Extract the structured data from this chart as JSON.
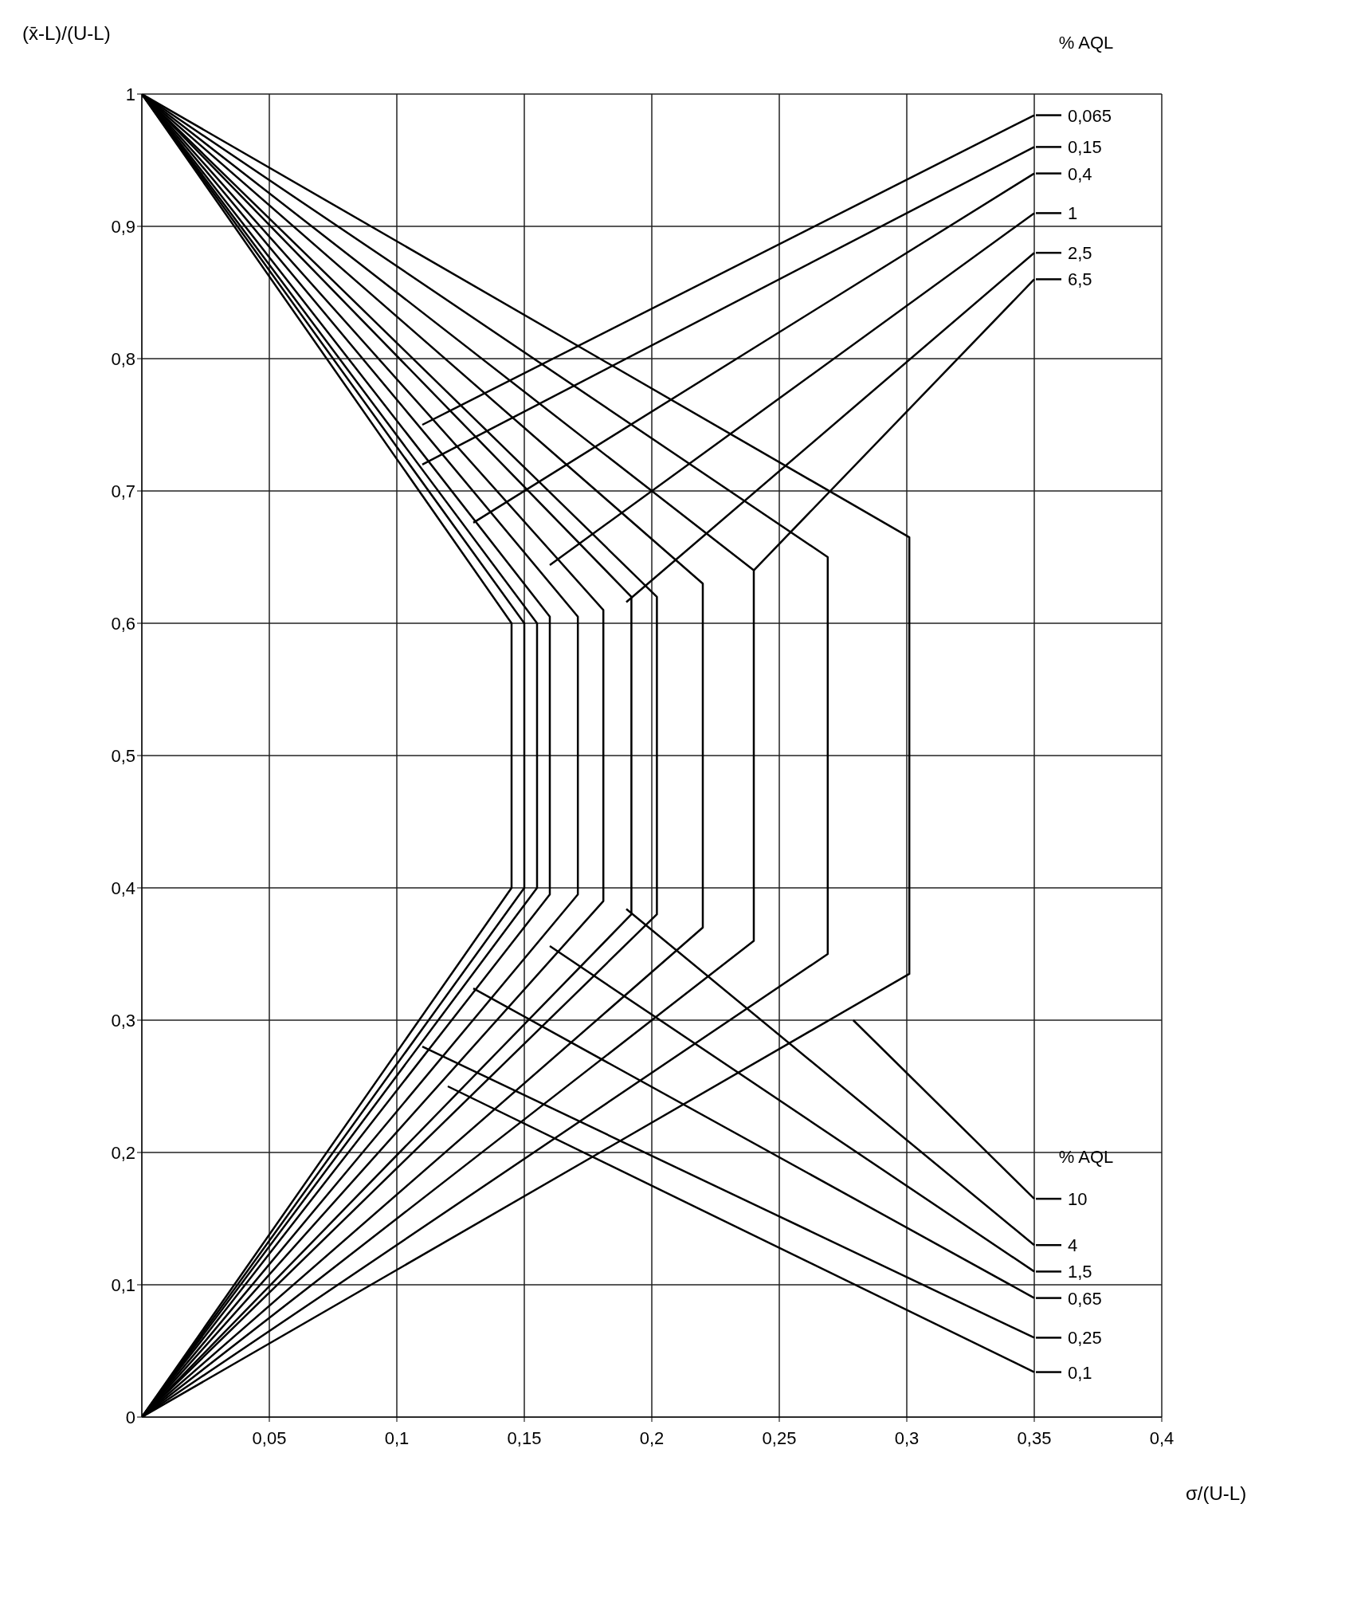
{
  "chart_data": {
    "type": "line",
    "xlabel": "σ/(U-L)",
    "ylabel": "(x̄-L)/(U-L)",
    "annotations": [
      "% AQL",
      "% AQL"
    ],
    "xlim": [
      0,
      0.4
    ],
    "ylim": [
      0,
      1
    ],
    "xticks": [
      {
        "value": 0.05,
        "label": "0,05"
      },
      {
        "value": 0.1,
        "label": "0,1"
      },
      {
        "value": 0.15,
        "label": "0,15"
      },
      {
        "value": 0.2,
        "label": "0,2"
      },
      {
        "value": 0.25,
        "label": "0,25"
      },
      {
        "value": 0.3,
        "label": "0,3"
      },
      {
        "value": 0.35,
        "label": "0,35"
      },
      {
        "value": 0.4,
        "label": "0,4"
      }
    ],
    "yticks": [
      0,
      {
        "value": 0.1,
        "label": "0,1"
      },
      {
        "value": 0.2,
        "label": "0,2"
      },
      {
        "value": 0.3,
        "label": "0,3"
      },
      {
        "value": 0.4,
        "label": "0,4"
      },
      {
        "value": 0.5,
        "label": "0,5"
      },
      {
        "value": 0.6,
        "label": "0,6"
      },
      {
        "value": 0.7,
        "label": "0,7"
      },
      {
        "value": 0.8,
        "label": "0,8"
      },
      {
        "value": 0.9,
        "label": "0,9"
      },
      1
    ],
    "grid": true,
    "line_style": "solid",
    "legend": "right",
    "series": [
      {
        "name": "0,065",
        "color": "#000000",
        "x": [
          0,
          0.145,
          0.145,
          0,
          null,
          0.11,
          0.35
        ],
        "values": [
          1,
          0.6,
          0.4,
          0,
          null,
          0.75,
          0.984
        ]
      },
      {
        "name": "0,1",
        "color": "#000000",
        "x": [
          0,
          0.15,
          0.15,
          0,
          null,
          0.12,
          0.35
        ],
        "values": [
          1,
          0.6,
          0.4,
          0,
          null,
          0.25,
          0.034
        ]
      },
      {
        "name": "0,15",
        "color": "#000000",
        "x": [
          0,
          0.155,
          0.155,
          0,
          null,
          0.11,
          0.35
        ],
        "values": [
          1,
          0.6,
          0.4,
          0,
          null,
          0.72,
          0.96
        ]
      },
      {
        "name": "0,25",
        "color": "#000000",
        "x": [
          0,
          0.16,
          0.16,
          0,
          null,
          0.11,
          0.35
        ],
        "values": [
          1,
          0.605,
          0.395,
          0,
          null,
          0.28,
          0.06
        ]
      },
      {
        "name": "0,4",
        "color": "#000000",
        "x": [
          0,
          0.171,
          0.171,
          0,
          null,
          0.13,
          0.35
        ],
        "values": [
          1,
          0.605,
          0.395,
          0,
          null,
          0.676,
          0.94
        ]
      },
      {
        "name": "0,65",
        "color": "#000000",
        "x": [
          0,
          0.181,
          0.181,
          0,
          null,
          0.13,
          0.35
        ],
        "values": [
          1,
          0.61,
          0.39,
          0,
          null,
          0.324,
          0.09
        ]
      },
      {
        "name": "1",
        "color": "#000000",
        "x": [
          0,
          0.192,
          0.192,
          0,
          null,
          0.16,
          0.35
        ],
        "values": [
          1,
          0.62,
          0.38,
          0,
          null,
          0.644,
          0.91
        ]
      },
      {
        "name": "1,5",
        "color": "#000000",
        "x": [
          0,
          0.202,
          0.202,
          0,
          null,
          0.16,
          0.35
        ],
        "values": [
          1,
          0.62,
          0.38,
          0,
          null,
          0.356,
          0.11
        ]
      },
      {
        "name": "2,5",
        "color": "#000000",
        "x": [
          0,
          0.22,
          0.22,
          0,
          null,
          0.19,
          0.35
        ],
        "values": [
          1,
          0.63,
          0.37,
          0,
          null,
          0.616,
          0.88
        ]
      },
      {
        "name": "4",
        "color": "#000000",
        "x": [
          0,
          0.24,
          0.24,
          0,
          null,
          0.19,
          0.35
        ],
        "values": [
          1,
          0.64,
          0.36,
          0,
          null,
          0.384,
          0.13
        ]
      },
      {
        "name": "6,5",
        "color": "#000000",
        "x": [
          0,
          0.269,
          0.269,
          0,
          null,
          0.24,
          0.35
        ],
        "values": [
          1,
          0.65,
          0.35,
          0,
          null,
          0.64,
          0.86
        ]
      },
      {
        "name": "10",
        "color": "#000000",
        "x": [
          0,
          0.301,
          0.301,
          0,
          null,
          0.279,
          0.35
        ],
        "values": [
          1,
          0.665,
          0.335,
          0,
          null,
          0.3,
          0.165
        ]
      }
    ]
  }
}
